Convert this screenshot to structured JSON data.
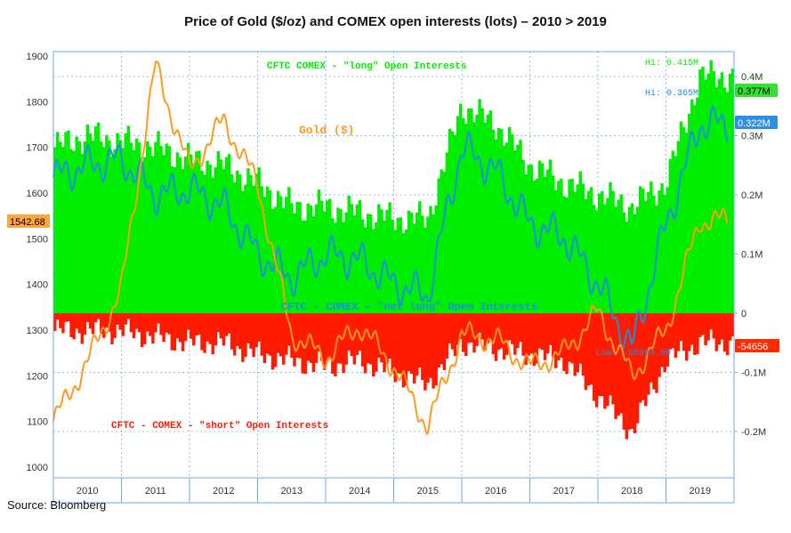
{
  "title": "Price of Gold ($/oz) and COMEX open interests (lots) – 2010 > 2019",
  "source": "Source: Bloomberg",
  "colors": {
    "long": "#00ee00",
    "short": "#ff1a00",
    "net_long": "#1e8fe0",
    "gold": "#ff9a1f",
    "axis": "#6aaee8",
    "grid": "#6aaee8"
  },
  "annotations": {
    "long_label": "CFTC COMEX - \"long\" Open Interests",
    "short_label": "CFTC - COMEX - \"short\" Open Interests",
    "net_label": "CFTC - COMEX - \"net long\" Open Interests",
    "gold_label": "Gold ($)",
    "long_hi": "Hi: 0.415M",
    "net_hi": "Hi: 0.365M",
    "net_low": "Low: -85094.00"
  },
  "chart_data": {
    "type": "bar",
    "x_categories": [
      "2010",
      "2011",
      "2012",
      "2013",
      "2014",
      "2015",
      "2016",
      "2017",
      "2018",
      "2019"
    ],
    "left_axis": {
      "label": "",
      "ticks": [
        "1900",
        "1800",
        "1700",
        "1600",
        "1500",
        "1400",
        "1300",
        "1200",
        "1100",
        "1000"
      ],
      "range": [
        1000,
        1900
      ]
    },
    "right_axis": {
      "label": "",
      "ticks": [
        "0.4M",
        "0.3M",
        "0.2M",
        "0.1M",
        "0",
        "-0.1M",
        "-0.2M"
      ],
      "range": [
        -0.27,
        0.43
      ]
    },
    "last_values": {
      "gold": "1542.68",
      "long": "0.377M",
      "net_long": "0.322M",
      "short": "-54656"
    },
    "series": [
      {
        "name": "CFTC COMEX - \"long\" Open Interests",
        "axis": "right",
        "x": [
          2010.0,
          2010.5,
          2011.0,
          2011.5,
          2012.0,
          2012.5,
          2013.0,
          2013.5,
          2014.0,
          2014.5,
          2015.0,
          2015.5,
          2016.0,
          2016.5,
          2017.0,
          2017.5,
          2018.0,
          2018.5,
          2019.0,
          2019.5
        ],
        "y": [
          0.28,
          0.3,
          0.29,
          0.28,
          0.26,
          0.25,
          0.22,
          0.18,
          0.18,
          0.17,
          0.16,
          0.16,
          0.35,
          0.32,
          0.25,
          0.22,
          0.2,
          0.18,
          0.22,
          0.4
        ]
      },
      {
        "name": "CFTC - COMEX - \"short\" Open Interests",
        "axis": "right",
        "x": [
          2010.0,
          2010.5,
          2011.0,
          2011.5,
          2012.0,
          2012.5,
          2013.0,
          2013.5,
          2014.0,
          2014.5,
          2015.0,
          2015.5,
          2016.0,
          2016.5,
          2017.0,
          2017.5,
          2018.0,
          2018.5,
          2019.0,
          2019.5
        ],
        "y": [
          -0.03,
          -0.03,
          -0.03,
          -0.04,
          -0.05,
          -0.05,
          -0.07,
          -0.08,
          -0.09,
          -0.08,
          -0.1,
          -0.12,
          -0.05,
          -0.06,
          -0.07,
          -0.08,
          -0.14,
          -0.2,
          -0.08,
          -0.05
        ]
      },
      {
        "name": "CFTC - COMEX - \"net long\" Open Interests",
        "axis": "right",
        "x": [
          2010.0,
          2010.5,
          2011.0,
          2011.5,
          2012.0,
          2012.5,
          2013.0,
          2013.5,
          2014.0,
          2014.5,
          2015.0,
          2015.5,
          2016.0,
          2016.5,
          2017.0,
          2017.5,
          2018.0,
          2018.5,
          2019.0,
          2019.5
        ],
        "y": [
          0.23,
          0.25,
          0.26,
          0.2,
          0.21,
          0.18,
          0.1,
          0.06,
          0.1,
          0.09,
          0.05,
          0.03,
          0.28,
          0.24,
          0.15,
          0.13,
          0.05,
          -0.06,
          0.15,
          0.32
        ]
      },
      {
        "name": "Gold ($)",
        "axis": "left",
        "x": [
          2010.0,
          2010.5,
          2011.0,
          2011.5,
          2012.0,
          2012.5,
          2013.0,
          2013.5,
          2014.0,
          2014.5,
          2015.0,
          2015.5,
          2016.0,
          2016.5,
          2017.0,
          2017.5,
          2018.0,
          2018.5,
          2019.0,
          2019.5
        ],
        "y": [
          1100,
          1230,
          1390,
          1880,
          1650,
          1760,
          1620,
          1290,
          1240,
          1310,
          1220,
          1090,
          1290,
          1280,
          1220,
          1250,
          1340,
          1200,
          1300,
          1540
        ]
      }
    ],
    "grid": true
  }
}
